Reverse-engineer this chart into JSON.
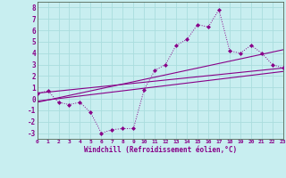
{
  "xlabel": "Windchill (Refroidissement éolien,°C)",
  "xlim": [
    0,
    23
  ],
  "ylim": [
    -3.5,
    8.5
  ],
  "bg_color": "#c8eef0",
  "line_color": "#880088",
  "grid_color": "#aadddd",
  "hours": [
    0,
    1,
    2,
    3,
    4,
    5,
    6,
    7,
    8,
    9,
    10,
    11,
    12,
    13,
    14,
    15,
    16,
    17,
    18,
    19,
    20,
    21,
    22,
    23
  ],
  "temp": [
    0.5,
    0.7,
    -0.3,
    -0.5,
    -0.3,
    -1.2,
    -3.0,
    -2.7,
    -2.6,
    -2.6,
    0.8,
    2.5,
    3.0,
    4.7,
    5.2,
    6.5,
    6.3,
    7.8,
    4.2,
    4.0,
    4.7,
    4.0,
    3.0,
    2.7
  ],
  "linear1_start": 0.5,
  "linear1_end": 2.7,
  "linear2_start": -0.3,
  "linear2_end": 4.3,
  "linear3_start": -0.2,
  "linear3_end": 2.4,
  "yticks": [
    -3,
    -2,
    -1,
    0,
    1,
    2,
    3,
    4,
    5,
    6,
    7,
    8
  ],
  "xtick_labels": [
    "0",
    "1",
    "2",
    "3",
    "4",
    "5",
    "6",
    "7",
    "8",
    "9",
    "10",
    "11",
    "12",
    "13",
    "14",
    "15",
    "16",
    "17",
    "18",
    "19",
    "20",
    "21",
    "22",
    "23"
  ]
}
